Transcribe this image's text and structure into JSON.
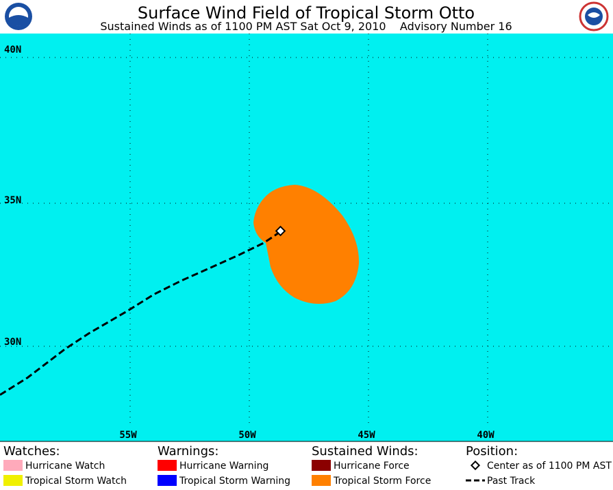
{
  "header": {
    "title": "Surface Wind Field of Tropical Storm Otto",
    "subtitle": "Sustained Winds as of 1100 PM AST Sat Oct 9, 2010    Advisory Number 16"
  },
  "map": {
    "lat_labels": [
      "40N",
      "35N",
      "30N"
    ],
    "lon_labels": [
      "55W",
      "50W",
      "45W",
      "40W"
    ]
  },
  "legend": {
    "groups": [
      {
        "title": "Watches:",
        "items": [
          "Hurricane Watch",
          "Tropical Storm Watch"
        ]
      },
      {
        "title": "Warnings:",
        "items": [
          "Hurricane Warning",
          "Tropical Storm Warning"
        ]
      },
      {
        "title": "Sustained Winds:",
        "items": [
          "Hurricane Force",
          "Tropical Storm Force"
        ]
      },
      {
        "title": "Position:",
        "items": [
          "Center as of 1100 PM AST",
          "Past Track"
        ]
      }
    ]
  }
}
